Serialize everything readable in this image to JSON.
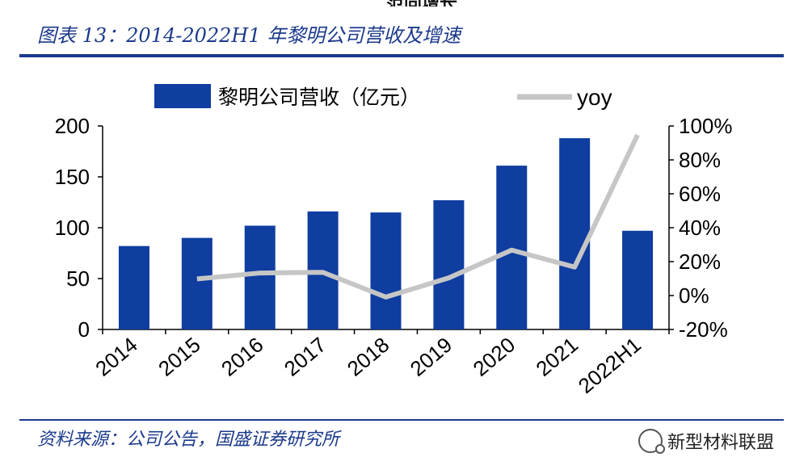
{
  "page": {
    "top_clip_text": "范同增长",
    "figure_title": "图表 13：2014-2022H1 年黎明公司营收及增速",
    "source": "资料来源：公司公告，国盛证券研究所",
    "watermark": "新型材料联盟",
    "watermark_icon": "wechat-icon"
  },
  "chart_data": {
    "type": "bar+line",
    "categories": [
      "2014",
      "2015",
      "2016",
      "2017",
      "2018",
      "2019",
      "2020",
      "2021",
      "2022H1"
    ],
    "series": [
      {
        "name": "黎明公司营收（亿元）",
        "type": "bar",
        "axis": "left",
        "color": "#0f3da0",
        "values": [
          82,
          90,
          102,
          116,
          115,
          127,
          161,
          188,
          97
        ]
      },
      {
        "name": "yoy",
        "type": "line",
        "axis": "right",
        "color": "#c6c6c6",
        "values": [
          null,
          9.8,
          13.3,
          13.7,
          -0.9,
          10.4,
          26.8,
          16.8,
          94.7
        ]
      }
    ],
    "y_left": {
      "min": 0,
      "max": 200,
      "ticks": [
        0,
        50,
        100,
        150,
        200
      ]
    },
    "y_right": {
      "min": -20,
      "max": 100,
      "ticks": [
        "-20%",
        "0%",
        "20%",
        "40%",
        "60%",
        "80%",
        "100%"
      ]
    },
    "legend_position": "top",
    "grid": false
  }
}
